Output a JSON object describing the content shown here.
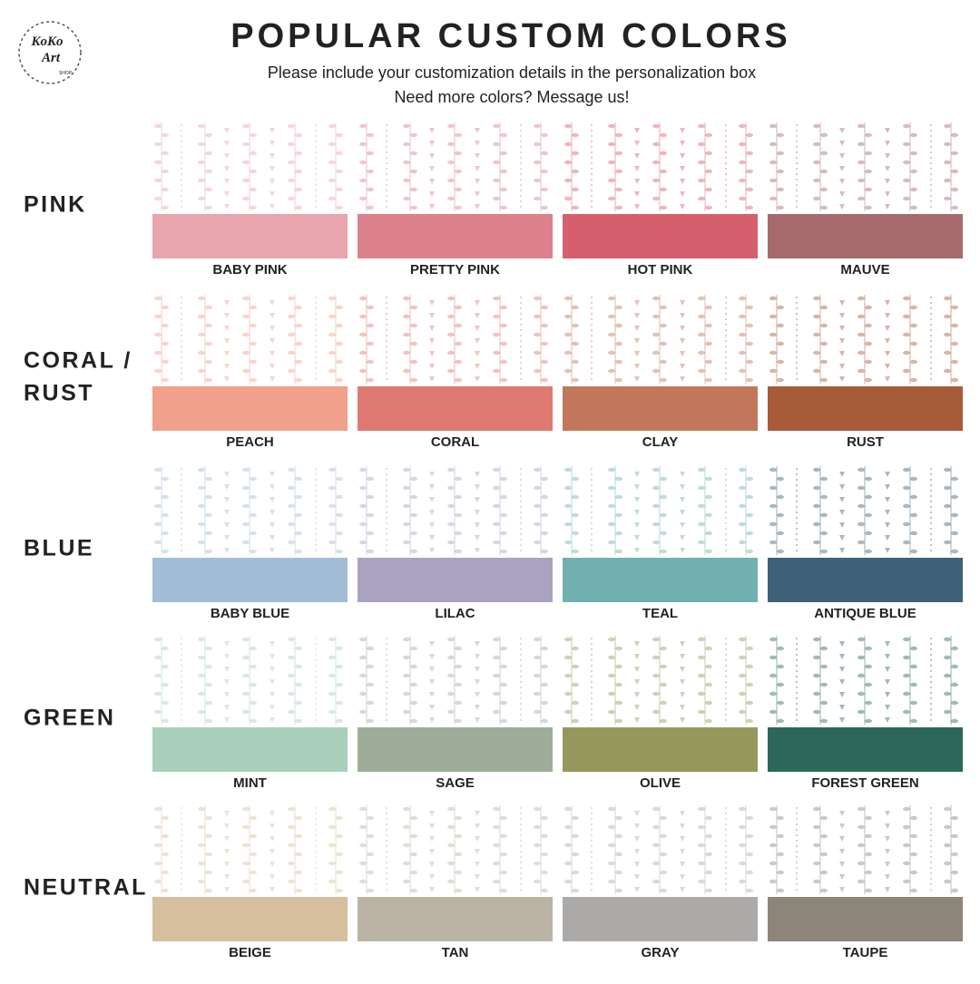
{
  "header": {
    "title": "POPULAR CUSTOM COLORS",
    "subtitle_lines": [
      "Please include your customization details in the personalization box",
      "Need more colors? Message us!"
    ]
  },
  "logo": {
    "line1": "KoKo",
    "line2": "Art",
    "line3": "SHOP"
  },
  "groups": [
    {
      "label_lines": [
        "PINK"
      ],
      "swatches": [
        {
          "name": "BABY PINK",
          "color": "#e8a5ae"
        },
        {
          "name": "PRETTY PINK",
          "color": "#dc818b"
        },
        {
          "name": "HOT PINK",
          "color": "#d65f6e"
        },
        {
          "name": "MAUVE",
          "color": "#a76b6d"
        }
      ]
    },
    {
      "label_lines": [
        "CORAL /",
        "RUST"
      ],
      "swatches": [
        {
          "name": "PEACH",
          "color": "#f1a08b"
        },
        {
          "name": "CORAL",
          "color": "#df7a72"
        },
        {
          "name": "CLAY",
          "color": "#c2775a"
        },
        {
          "name": "RUST",
          "color": "#a85b39"
        }
      ]
    },
    {
      "label_lines": [
        "BLUE"
      ],
      "swatches": [
        {
          "name": "BABY BLUE",
          "color": "#a2bdd5"
        },
        {
          "name": "LILAC",
          "color": "#aba2c1"
        },
        {
          "name": "TEAL",
          "color": "#71b0b1"
        },
        {
          "name": "ANTIQUE BLUE",
          "color": "#3e6178"
        }
      ]
    },
    {
      "label_lines": [
        "GREEN"
      ],
      "swatches": [
        {
          "name": "MINT",
          "color": "#a8cfba"
        },
        {
          "name": "SAGE",
          "color": "#9eac9a"
        },
        {
          "name": "OLIVE",
          "color": "#95985a"
        },
        {
          "name": "FOREST GREEN",
          "color": "#2d6759"
        }
      ]
    },
    {
      "label_lines": [
        "NEUTRAL"
      ],
      "swatches": [
        {
          "name": "BEIGE",
          "color": "#d6bf9d"
        },
        {
          "name": "TAN",
          "color": "#bbb3a3"
        },
        {
          "name": "GRAY",
          "color": "#acaaa8"
        },
        {
          "name": "TAUPE",
          "color": "#8e8479"
        }
      ]
    }
  ]
}
